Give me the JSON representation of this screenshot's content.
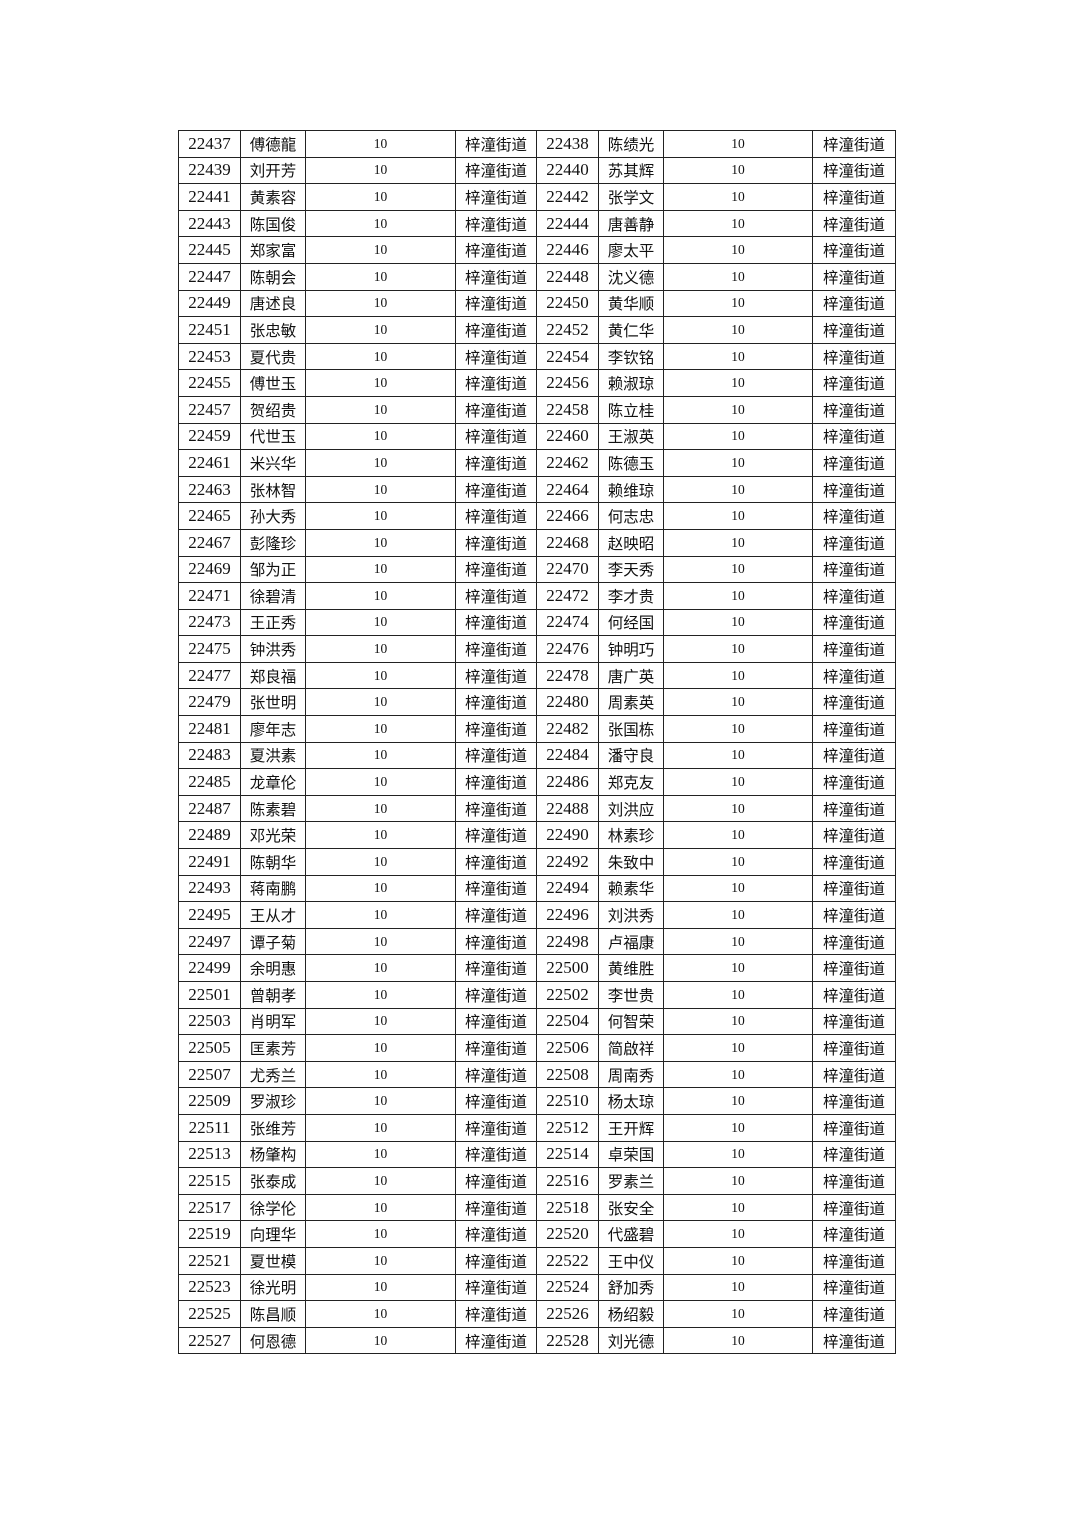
{
  "table": {
    "rows": [
      {
        "left": {
          "id": "22437",
          "name": "傅德龍",
          "amount": "10",
          "street": "梓潼街道"
        },
        "right": {
          "id": "22438",
          "name": "陈绩光",
          "amount": "10",
          "street": "梓潼街道"
        }
      },
      {
        "left": {
          "id": "22439",
          "name": "刘开芳",
          "amount": "10",
          "street": "梓潼街道"
        },
        "right": {
          "id": "22440",
          "name": "苏其辉",
          "amount": "10",
          "street": "梓潼街道"
        }
      },
      {
        "left": {
          "id": "22441",
          "name": "黄素容",
          "amount": "10",
          "street": "梓潼街道"
        },
        "right": {
          "id": "22442",
          "name": "张学文",
          "amount": "10",
          "street": "梓潼街道"
        }
      },
      {
        "left": {
          "id": "22443",
          "name": "陈国俊",
          "amount": "10",
          "street": "梓潼街道"
        },
        "right": {
          "id": "22444",
          "name": "唐善静",
          "amount": "10",
          "street": "梓潼街道"
        }
      },
      {
        "left": {
          "id": "22445",
          "name": "郑家富",
          "amount": "10",
          "street": "梓潼街道"
        },
        "right": {
          "id": "22446",
          "name": "廖太平",
          "amount": "10",
          "street": "梓潼街道"
        }
      },
      {
        "left": {
          "id": "22447",
          "name": "陈朝会",
          "amount": "10",
          "street": "梓潼街道"
        },
        "right": {
          "id": "22448",
          "name": "沈义德",
          "amount": "10",
          "street": "梓潼街道"
        }
      },
      {
        "left": {
          "id": "22449",
          "name": "唐述良",
          "amount": "10",
          "street": "梓潼街道"
        },
        "right": {
          "id": "22450",
          "name": "黄华顺",
          "amount": "10",
          "street": "梓潼街道"
        }
      },
      {
        "left": {
          "id": "22451",
          "name": "张忠敏",
          "amount": "10",
          "street": "梓潼街道"
        },
        "right": {
          "id": "22452",
          "name": "黄仁华",
          "amount": "10",
          "street": "梓潼街道"
        }
      },
      {
        "left": {
          "id": "22453",
          "name": "夏代贵",
          "amount": "10",
          "street": "梓潼街道"
        },
        "right": {
          "id": "22454",
          "name": "李钦铭",
          "amount": "10",
          "street": "梓潼街道"
        }
      },
      {
        "left": {
          "id": "22455",
          "name": "傅世玉",
          "amount": "10",
          "street": "梓潼街道"
        },
        "right": {
          "id": "22456",
          "name": "赖淑琼",
          "amount": "10",
          "street": "梓潼街道"
        }
      },
      {
        "left": {
          "id": "22457",
          "name": "贺绍贵",
          "amount": "10",
          "street": "梓潼街道"
        },
        "right": {
          "id": "22458",
          "name": "陈立桂",
          "amount": "10",
          "street": "梓潼街道"
        }
      },
      {
        "left": {
          "id": "22459",
          "name": "代世玉",
          "amount": "10",
          "street": "梓潼街道"
        },
        "right": {
          "id": "22460",
          "name": "王淑英",
          "amount": "10",
          "street": "梓潼街道"
        }
      },
      {
        "left": {
          "id": "22461",
          "name": "米兴华",
          "amount": "10",
          "street": "梓潼街道"
        },
        "right": {
          "id": "22462",
          "name": "陈德玉",
          "amount": "10",
          "street": "梓潼街道"
        }
      },
      {
        "left": {
          "id": "22463",
          "name": "张林智",
          "amount": "10",
          "street": "梓潼街道"
        },
        "right": {
          "id": "22464",
          "name": "赖维琼",
          "amount": "10",
          "street": "梓潼街道"
        }
      },
      {
        "left": {
          "id": "22465",
          "name": "孙大秀",
          "amount": "10",
          "street": "梓潼街道"
        },
        "right": {
          "id": "22466",
          "name": "何志忠",
          "amount": "10",
          "street": "梓潼街道"
        }
      },
      {
        "left": {
          "id": "22467",
          "name": "彭隆珍",
          "amount": "10",
          "street": "梓潼街道"
        },
        "right": {
          "id": "22468",
          "name": "赵映昭",
          "amount": "10",
          "street": "梓潼街道"
        }
      },
      {
        "left": {
          "id": "22469",
          "name": "邹为正",
          "amount": "10",
          "street": "梓潼街道"
        },
        "right": {
          "id": "22470",
          "name": "李天秀",
          "amount": "10",
          "street": "梓潼街道"
        }
      },
      {
        "left": {
          "id": "22471",
          "name": "徐碧清",
          "amount": "10",
          "street": "梓潼街道"
        },
        "right": {
          "id": "22472",
          "name": "李才贵",
          "amount": "10",
          "street": "梓潼街道"
        }
      },
      {
        "left": {
          "id": "22473",
          "name": "王正秀",
          "amount": "10",
          "street": "梓潼街道"
        },
        "right": {
          "id": "22474",
          "name": "何经国",
          "amount": "10",
          "street": "梓潼街道"
        }
      },
      {
        "left": {
          "id": "22475",
          "name": "钟洪秀",
          "amount": "10",
          "street": "梓潼街道"
        },
        "right": {
          "id": "22476",
          "name": "钟明巧",
          "amount": "10",
          "street": "梓潼街道"
        }
      },
      {
        "left": {
          "id": "22477",
          "name": "郑良福",
          "amount": "10",
          "street": "梓潼街道"
        },
        "right": {
          "id": "22478",
          "name": "唐广英",
          "amount": "10",
          "street": "梓潼街道"
        }
      },
      {
        "left": {
          "id": "22479",
          "name": "张世明",
          "amount": "10",
          "street": "梓潼街道"
        },
        "right": {
          "id": "22480",
          "name": "周素英",
          "amount": "10",
          "street": "梓潼街道"
        }
      },
      {
        "left": {
          "id": "22481",
          "name": "廖年志",
          "amount": "10",
          "street": "梓潼街道"
        },
        "right": {
          "id": "22482",
          "name": "张国栋",
          "amount": "10",
          "street": "梓潼街道"
        }
      },
      {
        "left": {
          "id": "22483",
          "name": "夏洪素",
          "amount": "10",
          "street": "梓潼街道"
        },
        "right": {
          "id": "22484",
          "name": "潘守良",
          "amount": "10",
          "street": "梓潼街道"
        }
      },
      {
        "left": {
          "id": "22485",
          "name": "龙章伦",
          "amount": "10",
          "street": "梓潼街道"
        },
        "right": {
          "id": "22486",
          "name": "郑克友",
          "amount": "10",
          "street": "梓潼街道"
        }
      },
      {
        "left": {
          "id": "22487",
          "name": "陈素碧",
          "amount": "10",
          "street": "梓潼街道"
        },
        "right": {
          "id": "22488",
          "name": "刘洪应",
          "amount": "10",
          "street": "梓潼街道"
        }
      },
      {
        "left": {
          "id": "22489",
          "name": "邓光荣",
          "amount": "10",
          "street": "梓潼街道"
        },
        "right": {
          "id": "22490",
          "name": "林素珍",
          "amount": "10",
          "street": "梓潼街道"
        }
      },
      {
        "left": {
          "id": "22491",
          "name": "陈朝华",
          "amount": "10",
          "street": "梓潼街道"
        },
        "right": {
          "id": "22492",
          "name": "朱致中",
          "amount": "10",
          "street": "梓潼街道"
        }
      },
      {
        "left": {
          "id": "22493",
          "name": "蒋南鹏",
          "amount": "10",
          "street": "梓潼街道"
        },
        "right": {
          "id": "22494",
          "name": "赖素华",
          "amount": "10",
          "street": "梓潼街道"
        }
      },
      {
        "left": {
          "id": "22495",
          "name": "王从才",
          "amount": "10",
          "street": "梓潼街道"
        },
        "right": {
          "id": "22496",
          "name": "刘洪秀",
          "amount": "10",
          "street": "梓潼街道"
        }
      },
      {
        "left": {
          "id": "22497",
          "name": "谭子菊",
          "amount": "10",
          "street": "梓潼街道"
        },
        "right": {
          "id": "22498",
          "name": "卢福康",
          "amount": "10",
          "street": "梓潼街道"
        }
      },
      {
        "left": {
          "id": "22499",
          "name": "余明惠",
          "amount": "10",
          "street": "梓潼街道"
        },
        "right": {
          "id": "22500",
          "name": "黄维胜",
          "amount": "10",
          "street": "梓潼街道"
        }
      },
      {
        "left": {
          "id": "22501",
          "name": "曾朝孝",
          "amount": "10",
          "street": "梓潼街道"
        },
        "right": {
          "id": "22502",
          "name": "李世贵",
          "amount": "10",
          "street": "梓潼街道"
        }
      },
      {
        "left": {
          "id": "22503",
          "name": "肖明军",
          "amount": "10",
          "street": "梓潼街道"
        },
        "right": {
          "id": "22504",
          "name": "何智荣",
          "amount": "10",
          "street": "梓潼街道"
        }
      },
      {
        "left": {
          "id": "22505",
          "name": "匡素芳",
          "amount": "10",
          "street": "梓潼街道"
        },
        "right": {
          "id": "22506",
          "name": "简啟祥",
          "amount": "10",
          "street": "梓潼街道"
        }
      },
      {
        "left": {
          "id": "22507",
          "name": "尤秀兰",
          "amount": "10",
          "street": "梓潼街道"
        },
        "right": {
          "id": "22508",
          "name": "周南秀",
          "amount": "10",
          "street": "梓潼街道"
        }
      },
      {
        "left": {
          "id": "22509",
          "name": "罗淑珍",
          "amount": "10",
          "street": "梓潼街道"
        },
        "right": {
          "id": "22510",
          "name": "杨太琼",
          "amount": "10",
          "street": "梓潼街道"
        }
      },
      {
        "left": {
          "id": "22511",
          "name": "张维芳",
          "amount": "10",
          "street": "梓潼街道"
        },
        "right": {
          "id": "22512",
          "name": "王开辉",
          "amount": "10",
          "street": "梓潼街道"
        }
      },
      {
        "left": {
          "id": "22513",
          "name": "杨肇构",
          "amount": "10",
          "street": "梓潼街道"
        },
        "right": {
          "id": "22514",
          "name": "卓荣国",
          "amount": "10",
          "street": "梓潼街道"
        }
      },
      {
        "left": {
          "id": "22515",
          "name": "张泰成",
          "amount": "10",
          "street": "梓潼街道"
        },
        "right": {
          "id": "22516",
          "name": "罗素兰",
          "amount": "10",
          "street": "梓潼街道"
        }
      },
      {
        "left": {
          "id": "22517",
          "name": "徐学伦",
          "amount": "10",
          "street": "梓潼街道"
        },
        "right": {
          "id": "22518",
          "name": "张安全",
          "amount": "10",
          "street": "梓潼街道"
        }
      },
      {
        "left": {
          "id": "22519",
          "name": "向理华",
          "amount": "10",
          "street": "梓潼街道"
        },
        "right": {
          "id": "22520",
          "name": "代盛碧",
          "amount": "10",
          "street": "梓潼街道"
        }
      },
      {
        "left": {
          "id": "22521",
          "name": "夏世模",
          "amount": "10",
          "street": "梓潼街道"
        },
        "right": {
          "id": "22522",
          "name": "王中仪",
          "amount": "10",
          "street": "梓潼街道"
        }
      },
      {
        "left": {
          "id": "22523",
          "name": "徐光明",
          "amount": "10",
          "street": "梓潼街道"
        },
        "right": {
          "id": "22524",
          "name": "舒加秀",
          "amount": "10",
          "street": "梓潼街道"
        }
      },
      {
        "left": {
          "id": "22525",
          "name": "陈昌顺",
          "amount": "10",
          "street": "梓潼街道"
        },
        "right": {
          "id": "22526",
          "name": "杨绍毅",
          "amount": "10",
          "street": "梓潼街道"
        }
      },
      {
        "left": {
          "id": "22527",
          "name": "何恩德",
          "amount": "10",
          "street": "梓潼街道"
        },
        "right": {
          "id": "22528",
          "name": "刘光德",
          "amount": "10",
          "street": "梓潼街道"
        }
      }
    ]
  }
}
